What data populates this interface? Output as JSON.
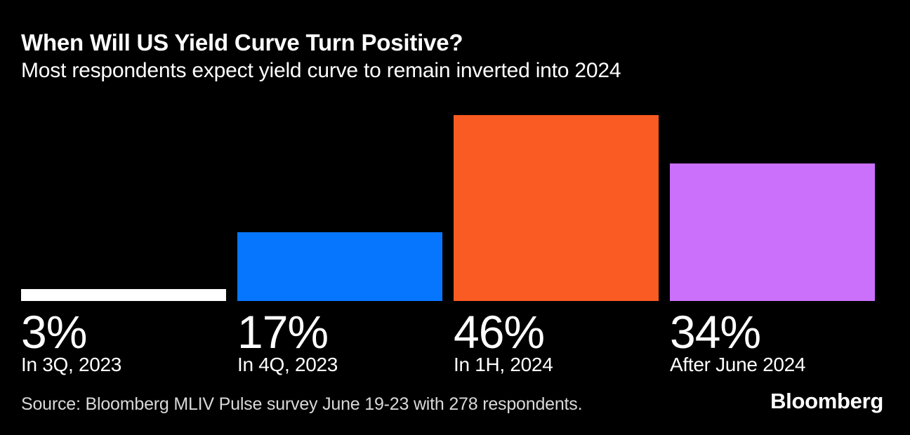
{
  "header": {
    "title": "When Will US Yield Curve Turn Positive?",
    "subtitle": "Most respondents expect yield curve to remain inverted into 2024"
  },
  "chart_data": {
    "type": "bar",
    "title": "When Will US Yield Curve Turn Positive?",
    "subtitle": "Most respondents expect yield curve to remain inverted into 2024",
    "categories": [
      "In 3Q, 2023",
      "In 4Q, 2023",
      "In 1H, 2024",
      "After June 2024"
    ],
    "values": [
      3,
      17,
      46,
      34
    ],
    "value_labels": [
      "3%",
      "17%",
      "46%",
      "34%"
    ],
    "bar_colors": [
      "#ffffff",
      "#0676ff",
      "#f95b22",
      "#ca70fa"
    ],
    "unit": "percent of respondents",
    "ylim": [
      0,
      46
    ],
    "grid": false,
    "legend": "none",
    "orientation": "vertical",
    "label_position": "below-bar"
  },
  "footer": {
    "source": "Source: Bloomberg MLIV Pulse survey June 19-23 with 278 respondents.",
    "brand": "Bloomberg"
  },
  "colors": {
    "background": "#000000",
    "title_text": "#ffffff",
    "label_text": "#ffffff",
    "source_text": "#d9d9d9"
  }
}
